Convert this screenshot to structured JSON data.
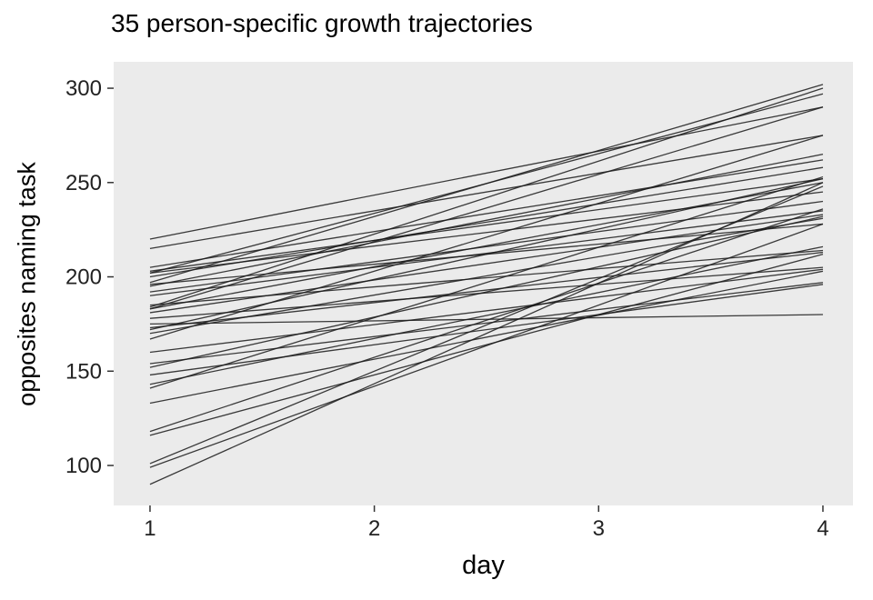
{
  "chart_data": {
    "type": "line",
    "title": "35 person-specific growth trajectories",
    "xlabel": "day",
    "ylabel": "opposites naming task",
    "n_trajectories": 35,
    "x_ticks": [
      1,
      2,
      3,
      4
    ],
    "y_ticks": [
      100,
      150,
      200,
      250,
      300
    ],
    "xlim": [
      0.838,
      4.134
    ],
    "ylim": [
      78.8,
      314.0
    ],
    "grid": false,
    "legend": "none",
    "panel_bg": "#EBEBEB",
    "line_color": "#1a1a1a",
    "axis_text_color": "#222222",
    "tick_color": "#333333",
    "x": [
      1,
      4
    ],
    "trajectories": [
      [
        90,
        250
      ],
      [
        99,
        228
      ],
      [
        101,
        248
      ],
      [
        116,
        212
      ],
      [
        118,
        236
      ],
      [
        133,
        203
      ],
      [
        141,
        253
      ],
      [
        143,
        216
      ],
      [
        148,
        196
      ],
      [
        152,
        232
      ],
      [
        154,
        197
      ],
      [
        160,
        204
      ],
      [
        167,
        275
      ],
      [
        170,
        231
      ],
      [
        172,
        252
      ],
      [
        173,
        213
      ],
      [
        175,
        180
      ],
      [
        178,
        205
      ],
      [
        181,
        233
      ],
      [
        183,
        290
      ],
      [
        183,
        250
      ],
      [
        184,
        300
      ],
      [
        185,
        214
      ],
      [
        190,
        235
      ],
      [
        192,
        240
      ],
      [
        195,
        265
      ],
      [
        196,
        228
      ],
      [
        197,
        302
      ],
      [
        200,
        258
      ],
      [
        202,
        297
      ],
      [
        202,
        245
      ],
      [
        203,
        252
      ],
      [
        205,
        262
      ],
      [
        215,
        275
      ],
      [
        220,
        290
      ]
    ]
  }
}
